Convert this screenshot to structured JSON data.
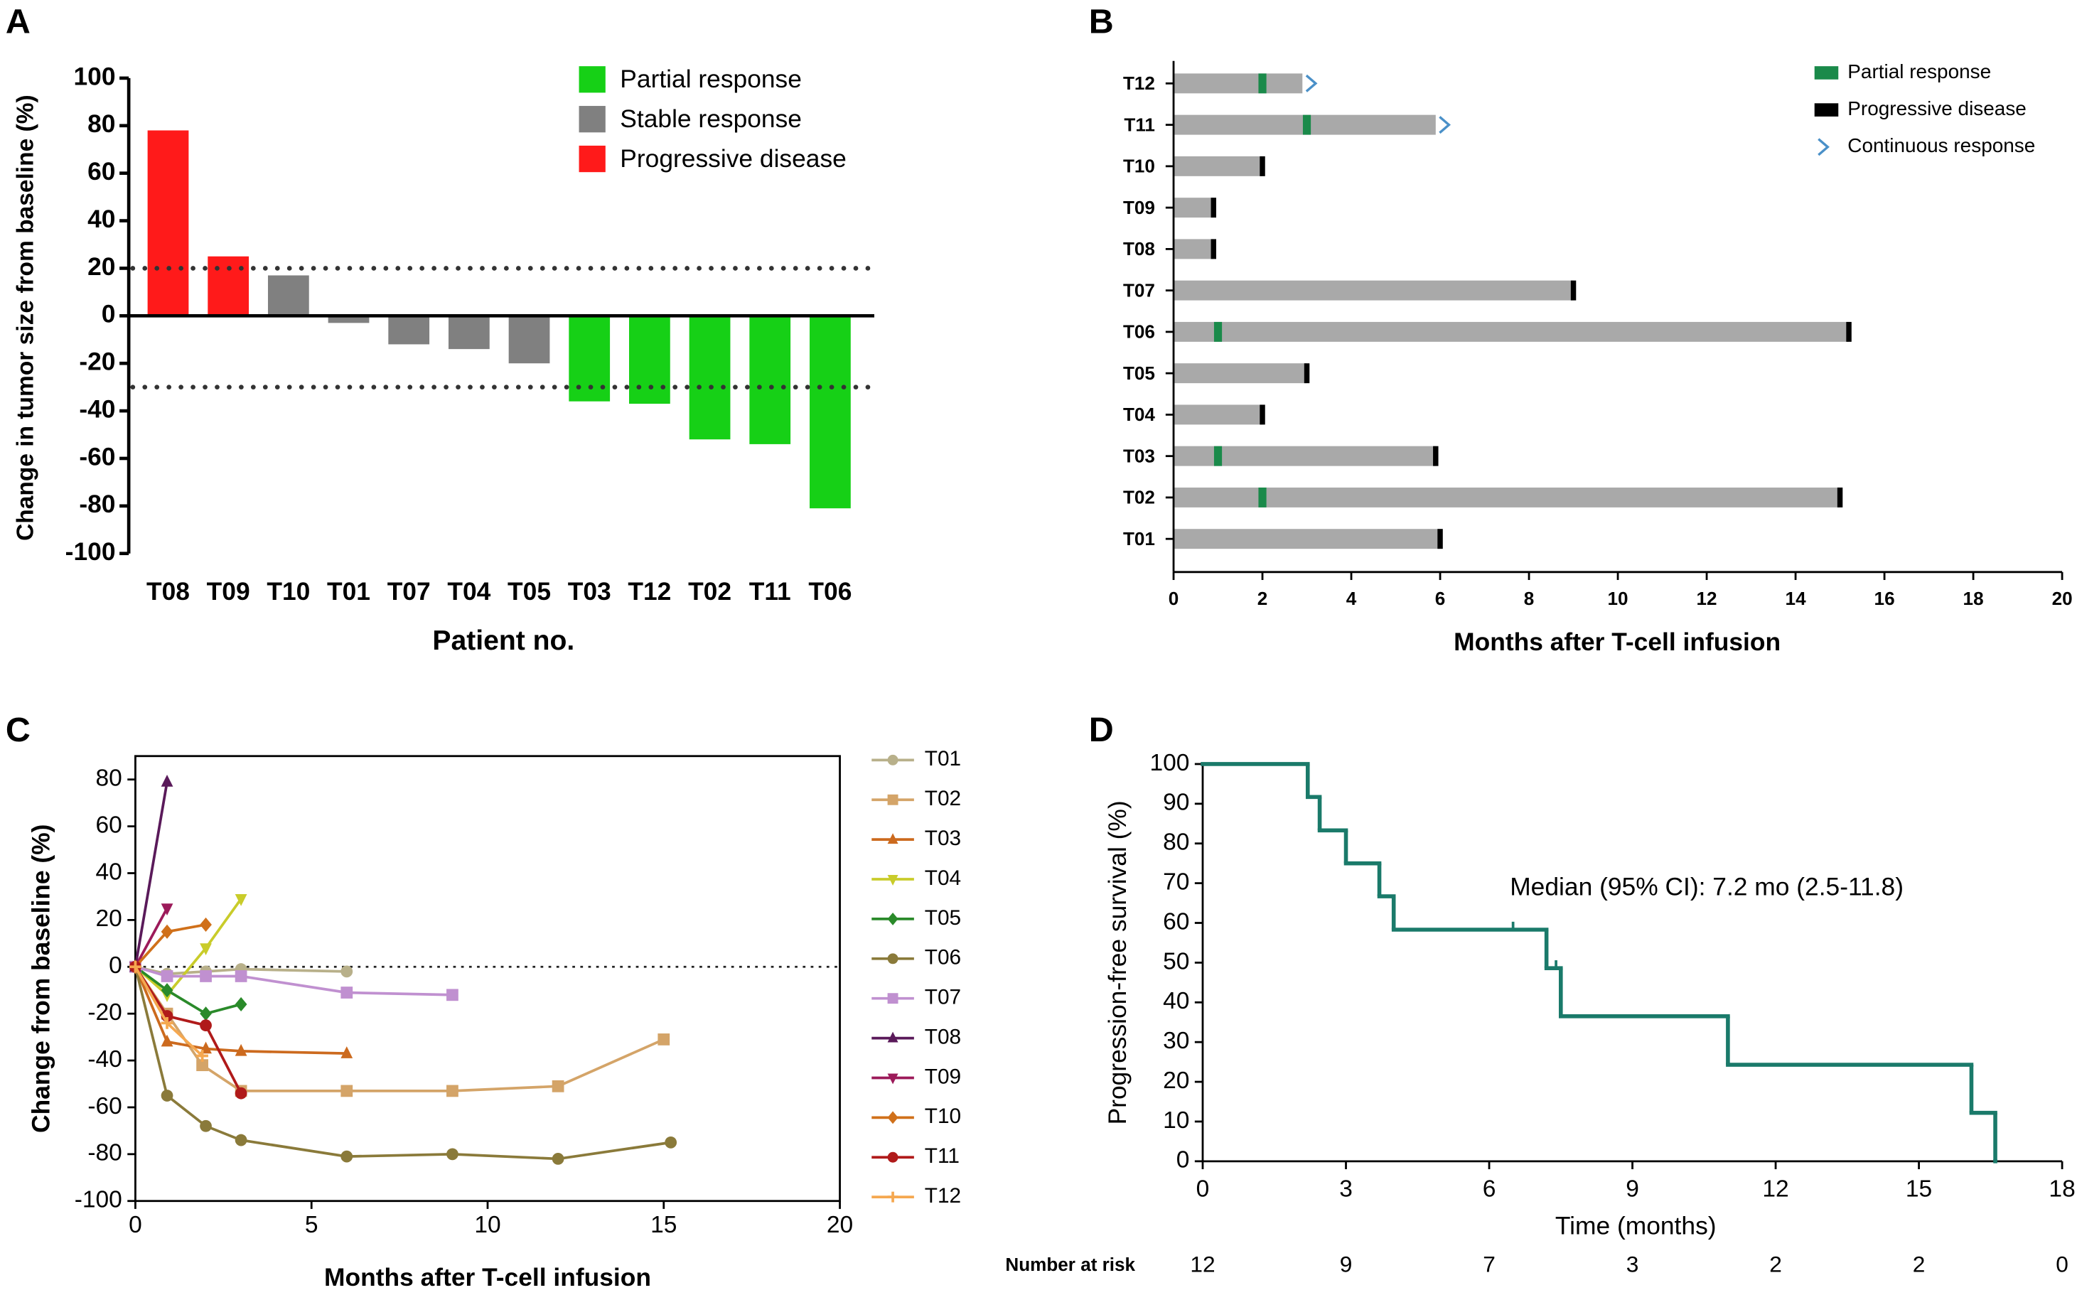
{
  "chart_data": [
    {
      "type": "bar",
      "panel_label": "A",
      "ylabel": "Change in tumor size from baseline (%)",
      "xlabel": "Patient no.",
      "categories": [
        "T08",
        "T09",
        "T10",
        "T01",
        "T07",
        "T04",
        "T05",
        "T03",
        "T12",
        "T02",
        "T11",
        "T06"
      ],
      "series": [
        {
          "name": "Partial response",
          "color": "#16d016",
          "values": [
            null,
            null,
            null,
            null,
            null,
            null,
            null,
            -36,
            -37,
            -52,
            -54,
            -81
          ]
        },
        {
          "name": "Stable response",
          "color": "#808080",
          "values": [
            null,
            null,
            17,
            -3,
            -12,
            -14,
            -20,
            null,
            null,
            null,
            null,
            null
          ]
        },
        {
          "name": "Progressive disease",
          "color": "#ff1a1a",
          "values": [
            78,
            25,
            null,
            null,
            null,
            null,
            null,
            null,
            null,
            null,
            null,
            null
          ]
        }
      ],
      "reference_lines": [
        20,
        -30
      ],
      "ylim": [
        -100,
        100
      ],
      "yticks": [
        -100,
        -80,
        -60,
        -40,
        -20,
        0,
        20,
        40,
        60,
        80,
        100
      ]
    },
    {
      "type": "swimmer",
      "panel_label": "B",
      "xlabel": "Months after T-cell infusion",
      "color": "#a9a9a9",
      "categories": [
        "T12",
        "T11",
        "T10",
        "T09",
        "T08",
        "T07",
        "T06",
        "T05",
        "T04",
        "T03",
        "T02",
        "T01"
      ],
      "values": [
        2.9,
        5.9,
        2.0,
        0.9,
        0.9,
        9.0,
        15.2,
        3.0,
        2.0,
        5.9,
        15.0,
        6.0
      ],
      "series": [
        {
          "name": "Partial  response",
          "color": "#1a8a4a",
          "marker": "rect",
          "values": [
            2.0,
            3.0,
            null,
            null,
            null,
            null,
            1.0,
            null,
            null,
            1.0,
            2.0,
            null
          ]
        },
        {
          "name": "Progressive disease",
          "color": "#000000",
          "marker": "end",
          "values": [
            null,
            null,
            2.0,
            0.9,
            0.9,
            9.0,
            15.2,
            3.0,
            2.0,
            5.9,
            15.0,
            6.0
          ]
        },
        {
          "name": "Continuous response",
          "color": "#4a90c8",
          "marker": "chevron",
          "values": [
            2.9,
            5.9,
            null,
            null,
            null,
            null,
            null,
            null,
            null,
            null,
            null,
            null
          ]
        }
      ],
      "xlim": [
        0,
        20
      ],
      "xticks": [
        0,
        2,
        4,
        6,
        8,
        10,
        12,
        14,
        16,
        18,
        20
      ]
    },
    {
      "type": "line",
      "panel_label": "C",
      "ylabel": "Change from baseline (%)",
      "xlabel": "Months after T-cell infusion",
      "series": [
        {
          "name": "T01",
          "color": "#b8b08a",
          "marker": "circle",
          "x": [
            0,
            0.9,
            2,
            3,
            6
          ],
          "values": [
            0,
            -3,
            -2,
            -1,
            -2
          ]
        },
        {
          "name": "T02",
          "color": "#d4a468",
          "marker": "square",
          "x": [
            0,
            0.9,
            1.9,
            3,
            6,
            9,
            12,
            15
          ],
          "values": [
            0,
            -20,
            -42,
            -53,
            -53,
            -53,
            -51,
            -31
          ]
        },
        {
          "name": "T03",
          "color": "#cc6a1e",
          "marker": "triangle-up",
          "x": [
            0,
            0.9,
            2,
            3,
            6
          ],
          "values": [
            0,
            -32,
            -35,
            -36,
            -37
          ]
        },
        {
          "name": "T04",
          "color": "#c9cc2a",
          "marker": "triangle-down",
          "x": [
            0,
            0.9,
            2,
            3
          ],
          "values": [
            0,
            -12,
            8,
            29
          ]
        },
        {
          "name": "T05",
          "color": "#2a8a2a",
          "marker": "diamond",
          "x": [
            0,
            0.9,
            2,
            3
          ],
          "values": [
            0,
            -10,
            -20,
            -16
          ]
        },
        {
          "name": "T06",
          "color": "#8a7a3a",
          "marker": "circle",
          "x": [
            0,
            0.9,
            2,
            3,
            6,
            9,
            12,
            15.2
          ],
          "values": [
            0,
            -55,
            -68,
            -74,
            -81,
            -80,
            -82,
            -75
          ]
        },
        {
          "name": "T07",
          "color": "#c090d0",
          "marker": "square",
          "x": [
            0,
            0.9,
            2,
            3,
            6,
            9
          ],
          "values": [
            0,
            -4,
            -4,
            -4,
            -11,
            -12
          ]
        },
        {
          "name": "T08",
          "color": "#5a1a5a",
          "marker": "triangle-up",
          "x": [
            0,
            0.9
          ],
          "values": [
            0,
            79
          ]
        },
        {
          "name": "T09",
          "color": "#9c1a5a",
          "marker": "triangle-down",
          "x": [
            0,
            0.9
          ],
          "values": [
            0,
            25
          ]
        },
        {
          "name": "T10",
          "color": "#d0701a",
          "marker": "diamond",
          "x": [
            0,
            0.9,
            2
          ],
          "values": [
            0,
            15,
            18
          ]
        },
        {
          "name": "T11",
          "color": "#b01a1a",
          "marker": "circle",
          "x": [
            0,
            0.9,
            2,
            3
          ],
          "values": [
            0,
            -21,
            -25,
            -54
          ]
        },
        {
          "name": "T12",
          "color": "#f5a850",
          "marker": "plus",
          "x": [
            0,
            0.9,
            1.9
          ],
          "values": [
            0,
            -24,
            -38
          ]
        }
      ],
      "reference_lines": [
        0
      ],
      "xlim": [
        0,
        20
      ],
      "xticks": [
        0,
        5,
        10,
        15,
        20
      ],
      "ylim": [
        -100,
        90
      ],
      "yticks": [
        -100,
        -80,
        -60,
        -40,
        -20,
        0,
        20,
        40,
        60,
        80
      ]
    },
    {
      "type": "step",
      "panel_label": "D",
      "ylabel": "Progression-free survival (%)",
      "xlabel": "Time (months)",
      "color": "#1a7a6a",
      "annotation": "Median (95% CI): 7.2 mo (2.5-11.8)",
      "x": [
        0,
        2.2,
        2.45,
        3.0,
        3.7,
        4.0,
        7.2,
        7.5,
        11.0,
        16.1,
        16.6
      ],
      "values": [
        100,
        91.7,
        83.3,
        75,
        66.7,
        58.3,
        48.6,
        36.5,
        24.3,
        12.2,
        0
      ],
      "censored": [
        6.5,
        7.4
      ],
      "risk_label": "Number at risk",
      "number_at_risk": [
        12,
        9,
        7,
        3,
        2,
        2,
        0
      ],
      "xlim": [
        0,
        18
      ],
      "xticks": [
        0,
        3,
        6,
        9,
        12,
        15,
        18
      ],
      "ylim": [
        0,
        100
      ],
      "yticks": [
        0,
        10,
        20,
        30,
        40,
        50,
        60,
        70,
        80,
        90,
        100
      ]
    }
  ]
}
